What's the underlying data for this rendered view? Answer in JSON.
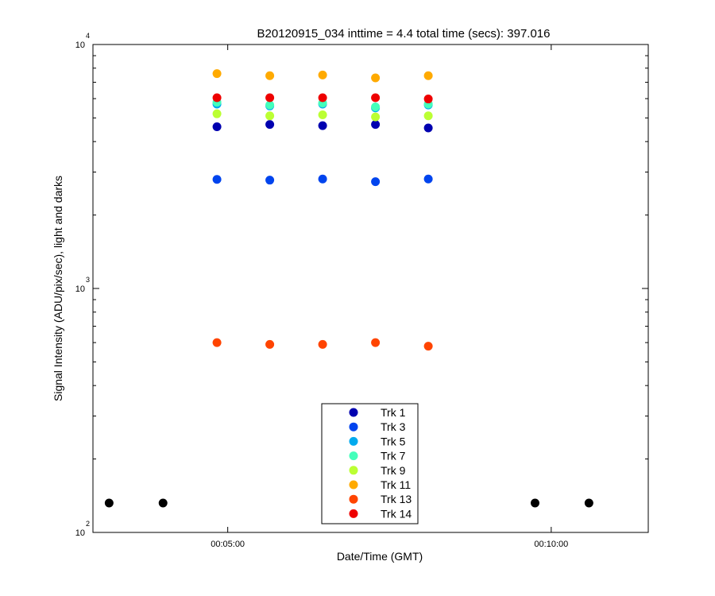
{
  "chart_data": {
    "type": "scatter",
    "title": "B20120915_034 inttime = 4.4 total time (secs): 397.016",
    "xlabel": "Date/Time (GMT)",
    "ylabel": "Signal Intensity (ADU/pix/sec), light and darks",
    "yscale": "log",
    "ylim": [
      100,
      10000
    ],
    "xlim": [
      "00:02:55",
      "00:11:30"
    ],
    "x_ticks": [
      "00:05:00",
      "00:10:00"
    ],
    "y_ticks": [
      {
        "base": "10",
        "exp": "2",
        "value": 100
      },
      {
        "base": "10",
        "exp": "3",
        "value": 1000
      },
      {
        "base": "10",
        "exp": "4",
        "value": 10000
      }
    ],
    "grid": false,
    "legend_position": "bottom-center",
    "x": [
      "00:04:50",
      "00:05:39",
      "00:06:28",
      "00:07:17",
      "00:08:06"
    ],
    "series": [
      {
        "name": "Trk 1",
        "color": "#0000b0",
        "values": [
          4600,
          4700,
          4650,
          4700,
          4550
        ]
      },
      {
        "name": "Trk 3",
        "color": "#0044ee",
        "values": [
          2800,
          2780,
          2810,
          2740,
          2810
        ]
      },
      {
        "name": "Trk 5",
        "color": "#00aaee",
        "values": [
          5700,
          5600,
          5700,
          5500,
          5650
        ]
      },
      {
        "name": "Trk 7",
        "color": "#44ffbb",
        "values": [
          5800,
          5650,
          5750,
          5550,
          5700
        ]
      },
      {
        "name": "Trk 9",
        "color": "#bbff33",
        "values": [
          5200,
          5100,
          5150,
          5050,
          5100
        ]
      },
      {
        "name": "Trk 11",
        "color": "#ffaa00",
        "values": [
          7600,
          7450,
          7500,
          7300,
          7450
        ]
      },
      {
        "name": "Trk 13",
        "color": "#ff4400",
        "values": [
          600,
          590,
          590,
          600,
          580
        ]
      },
      {
        "name": "Trk 14",
        "color": "#ee0000",
        "values": [
          6050,
          6050,
          6050,
          6050,
          5980
        ]
      }
    ],
    "dark_points": {
      "color": "#000000",
      "x": [
        "00:03:10",
        "00:04:00",
        "00:09:45",
        "00:10:35"
      ],
      "values": [
        132,
        132,
        132,
        132
      ]
    }
  }
}
